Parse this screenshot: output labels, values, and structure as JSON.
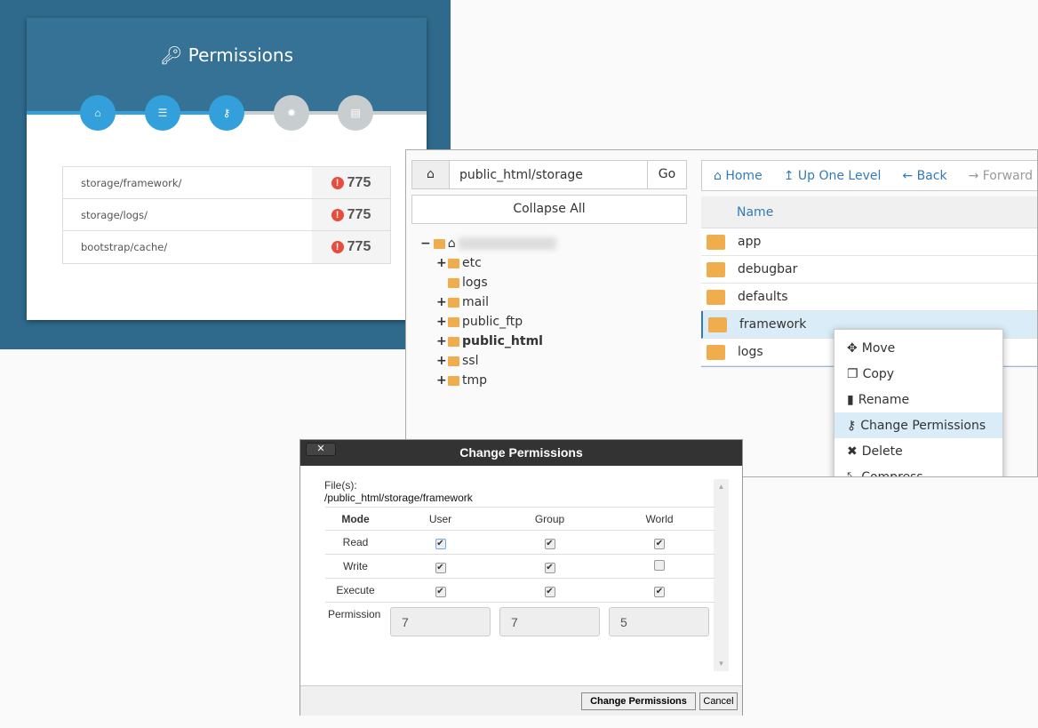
{
  "permissions_card": {
    "title": "Permissions",
    "title_icon": "key-icon",
    "steps": [
      {
        "icon": "home-icon",
        "active": true
      },
      {
        "icon": "list-icon",
        "active": true
      },
      {
        "icon": "key-icon",
        "active": true
      },
      {
        "icon": "gear-icon",
        "active": false
      },
      {
        "icon": "table-icon",
        "active": false
      }
    ],
    "rows": [
      {
        "path": "storage/framework/",
        "value": "775"
      },
      {
        "path": "storage/logs/",
        "value": "775"
      },
      {
        "path": "bootstrap/cache/",
        "value": "775"
      }
    ],
    "colors": {
      "header": "#367196",
      "active": "#33a0db",
      "inactive": "#c8cdd0",
      "warning": "#e84c3d"
    }
  },
  "file_manager": {
    "path_input": "public_html/storage",
    "go_label": "Go",
    "collapse_label": "Collapse All",
    "tree": [
      {
        "label": "etc",
        "expand": "+"
      },
      {
        "label": "logs",
        "expand": ""
      },
      {
        "label": "mail",
        "expand": "+"
      },
      {
        "label": "public_ftp",
        "expand": "+"
      },
      {
        "label": "public_html",
        "expand": "+",
        "bold": true
      },
      {
        "label": "ssl",
        "expand": "+"
      },
      {
        "label": "tmp",
        "expand": "+"
      }
    ],
    "toolbar": {
      "home": "Home",
      "up": "Up One Level",
      "back": "Back",
      "forward": "Forward"
    },
    "column_name": "Name",
    "files": [
      "app",
      "debugbar",
      "defaults",
      "framework",
      "logs"
    ],
    "selected": "framework",
    "context_menu": [
      {
        "label": "Move",
        "icon": "move-icon"
      },
      {
        "label": "Copy",
        "icon": "copy-icon"
      },
      {
        "label": "Rename",
        "icon": "file-icon"
      },
      {
        "label": "Change Permissions",
        "icon": "key-icon",
        "highlighted": true
      },
      {
        "label": "Delete",
        "icon": "x-icon"
      },
      {
        "label": "Compress",
        "icon": "compress-icon"
      }
    ]
  },
  "dialog": {
    "title": "Change Permissions",
    "close": "✕",
    "files_label": "File(s):",
    "files_path": "/public_html/storage/framework",
    "headers": [
      "Mode",
      "User",
      "Group",
      "World"
    ],
    "rows": [
      {
        "label": "Read",
        "checks": [
          true,
          true,
          true
        ]
      },
      {
        "label": "Write",
        "checks": [
          true,
          true,
          false
        ]
      },
      {
        "label": "Execute",
        "checks": [
          true,
          true,
          true
        ]
      }
    ],
    "permission_label": "Permission",
    "values": [
      "7",
      "7",
      "5"
    ],
    "submit": "Change Permissions",
    "cancel": "Cancel"
  }
}
